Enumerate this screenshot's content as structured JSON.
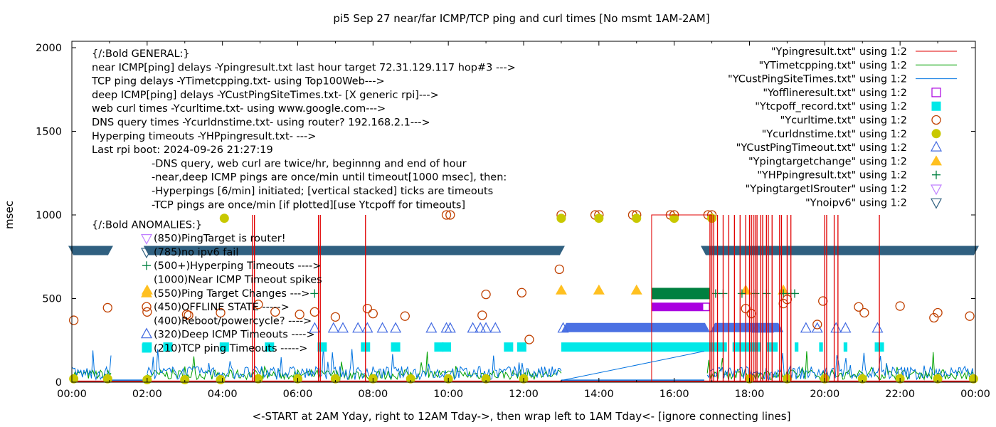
{
  "chart_data": {
    "type": "scatter",
    "title": "pi5 Sep 27  near/far ICMP/TCP ping and curl times [No msmt 1AM-2AM]",
    "xlabel": "<-START at 2AM Yday, right to 12AM Tday->, then wrap left to 1AM Tday<- [ignore connecting lines]",
    "ylabel": "msec",
    "xlim": [
      0,
      24
    ],
    "ylim": [
      0,
      2000
    ],
    "x_ticks": [
      "00:00",
      "02:00",
      "04:00",
      "06:00",
      "08:00",
      "10:00",
      "12:00",
      "14:00",
      "16:00",
      "18:00",
      "20:00",
      "22:00",
      "00:00"
    ],
    "y_ticks": [
      "0",
      "500",
      "1000",
      "1500",
      "2000"
    ],
    "y_tick_values": [
      0,
      500,
      1000,
      1500,
      2000
    ],
    "legend_position": "top-right",
    "legend": [
      {
        "label": "\"Ypingresult.txt\" using 1:2",
        "symbol": "line",
        "color": "#e00000"
      },
      {
        "label": "\"YTimetcpping.txt\" using 1:2",
        "symbol": "line",
        "color": "#00a000"
      },
      {
        "label": "\"YCustPingSiteTimes.txt\" using 1:2",
        "symbol": "line",
        "color": "#0072e0"
      },
      {
        "label": "\"Yofflineresult.txt\" using 1:2",
        "symbol": "open-square",
        "color": "#aa00e0"
      },
      {
        "label": "\"Ytcpoff_record.txt\" using 1:2",
        "symbol": "filled-square",
        "color": "#00e8e8"
      },
      {
        "label": "\"Ycurltime.txt\" using 1:2",
        "symbol": "open-circle",
        "color": "#c04000"
      },
      {
        "label": "\"Ycurldnstime.txt\" using 1:2",
        "symbol": "filled-circle",
        "color": "#c8c800"
      },
      {
        "label": "\"YCustPingTimeout.txt\" using 1:2",
        "symbol": "open-triangle-up",
        "color": "#4169e1"
      },
      {
        "label": "\"Ypingtargetchange\" using 1:2",
        "symbol": "filled-triangle-up",
        "color": "#ffc020"
      },
      {
        "label": "\"YHPpingresult.txt\" using 1:2",
        "symbol": "plus",
        "color": "#008040"
      },
      {
        "label": "\"YpingtargetISrouter\" using 1:2",
        "symbol": "open-triangle-down",
        "color": "#c080ff"
      },
      {
        "label": "\"Ynoipv6\" using 1:2",
        "symbol": "filled-triangle-down",
        "color": "#306080"
      }
    ],
    "annotations": {
      "general_header": "{/:Bold GENERAL:}",
      "general_lines": [
        "near ICMP[ping] delays -Ypingresult.txt last hour target 72.31.129.117 hop#3 --->",
        "TCP ping delays -YTimetcpping.txt- using Top100Web--->",
        "deep ICMP[ping] delays -YCustPingSiteTimes.txt- [X generic rpi]--->",
        "web curl times -Ycurltime.txt- using www.google.com--->",
        "DNS query times -Ycurldnstime.txt- using router? 192.168.2.1--->",
        "Hyperping timeouts -YHPpingresult.txt- --->",
        "Last rpi boot: 2024-09-26 21:27:19"
      ],
      "notes": [
        "-DNS query, web curl are twice/hr, beginnng and end of hour",
        "-near,deep ICMP pings are once/min until timeout[1000 msec], then:",
        "  -Hyperpings [6/min] initiated; [vertical stacked] ticks are timeouts",
        "-TCP pings are once/min [if plotted][use Ytcpoff for timeouts]"
      ],
      "anomalies_header": "{/:Bold ANOMALIES:}",
      "anomalies": [
        {
          "text": "(850)PingTarget is router!",
          "symbol": "open-triangle-down",
          "color": "#c080ff",
          "y": 850
        },
        {
          "text": "(785)no ipv6 fail",
          "symbol": "open-triangle-down",
          "color": "#306080",
          "y": 785
        },
        {
          "text": "(500+)Hyperping Timeouts ---->",
          "symbol": "plus",
          "color": "#008040",
          "y": 500
        },
        {
          "text": "(1000)Near ICMP Timeout spikes",
          "symbol": "none",
          "color": "#e00000",
          "y": 1000
        },
        {
          "text": "(550)Ping Target Changes --->",
          "symbol": "filled-triangle-up",
          "color": "#ffc020",
          "y": 550
        },
        {
          "text": "(450)OFFLINE STATE ----->",
          "symbol": "open-circle",
          "color": "#c04000",
          "y": 450
        },
        {
          "text": "(400)Reboot/powercycle? ---->",
          "symbol": "none",
          "color": "#000000",
          "y": 400
        },
        {
          "text": "(320)Deep ICMP Timeouts ---->",
          "symbol": "open-triangle-up",
          "color": "#4169e1",
          "y": 320
        },
        {
          "text": "(210)TCP ping Timeouts ----->",
          "symbol": "filled-square",
          "color": "#00e8e8",
          "y": 210
        }
      ]
    },
    "series": [
      {
        "name": "Ynoipv6",
        "type": "band",
        "y": 785,
        "segments": [
          [
            0,
            1.0
          ],
          [
            2.0,
            13.0
          ],
          [
            16.8,
            24
          ]
        ]
      },
      {
        "name": "YCustPingTimeout",
        "type": "points",
        "y": 320,
        "x": [
          6.45,
          6.95,
          7.2,
          7.6,
          7.85,
          8.25,
          8.6,
          9.55,
          9.95,
          10.05,
          10.65,
          10.85,
          11.0,
          11.25,
          13.05,
          18.2,
          18.5,
          19.5,
          19.8,
          20.3,
          20.55,
          21.4
        ],
        "dense_segments": [
          [
            13.0,
            16.95
          ],
          [
            16.95,
            18.9
          ]
        ]
      },
      {
        "name": "Ytcpoff_record",
        "type": "points",
        "y": 210,
        "x": [
          2.0,
          2.55,
          4.05,
          5.25,
          6.65,
          7.8,
          8.6,
          9.75,
          9.95,
          11.6,
          11.95,
          21.45
        ],
        "dense_segments": [
          [
            13.0,
            17.4
          ],
          [
            17.55,
            18.3
          ],
          [
            18.45,
            18.75
          ],
          [
            19.2,
            19.3
          ],
          [
            19.85,
            19.95
          ],
          [
            20.5,
            20.6
          ]
        ]
      },
      {
        "name": "Ypingtargetchange",
        "type": "points",
        "y": 550,
        "x": [
          2.0,
          13.0,
          14.0,
          15.0,
          17.9,
          18.9
        ]
      },
      {
        "name": "YHPpingresult",
        "type": "band",
        "y": 530,
        "segments": [
          [
            15.4,
            16.95
          ]
        ],
        "extra_x": [
          6.45,
          17.1,
          17.3,
          17.8,
          18.15,
          18.45,
          18.9,
          19.1,
          19.2
        ]
      },
      {
        "name": "Yofflineresult",
        "type": "band",
        "y": 450,
        "segments": [
          [
            15.4,
            16.95
          ]
        ]
      },
      {
        "name": "Ycurltime",
        "type": "points",
        "x": [
          0.05,
          0.95,
          2.0,
          3.1,
          3.05,
          3.95,
          4.95,
          5.4,
          6.05,
          6.45,
          7.0,
          7.85,
          8.0,
          8.85,
          9.95,
          10.05,
          10.9,
          11.0,
          11.95,
          12.15,
          12.95,
          13.0,
          13.9,
          14.0,
          14.9,
          15.0,
          15.9,
          16.0,
          16.9,
          17.0,
          17.9,
          18.05,
          18.9,
          19.0,
          19.8,
          19.95,
          20.9,
          21.05,
          22.0,
          22.9,
          23.0,
          23.85
        ],
        "y": [
          370,
          445,
          420,
          400,
          405,
          415,
          465,
          420,
          405,
          420,
          390,
          440,
          410,
          395,
          1000,
          1000,
          400,
          525,
          535,
          255,
          675,
          1000,
          1000,
          1000,
          1000,
          1000,
          1000,
          1000,
          1000,
          1000,
          440,
          410,
          470,
          495,
          345,
          485,
          450,
          415,
          455,
          385,
          415,
          395
        ]
      },
      {
        "name": "Ycurldnstime",
        "type": "points",
        "x": [
          0.05,
          0.95,
          2.0,
          3.0,
          3.95,
          4.05,
          4.95,
          6.0,
          7.0,
          8.0,
          9.0,
          10.0,
          11.0,
          12.0,
          13.0,
          14.0,
          15.0,
          16.0,
          17.0,
          18.0,
          19.0,
          20.0,
          21.0,
          22.0,
          23.0,
          23.95
        ],
        "y": [
          20,
          20,
          15,
          15,
          15,
          980,
          20,
          20,
          20,
          20,
          20,
          20,
          20,
          20,
          980,
          980,
          980,
          980,
          980,
          20,
          20,
          20,
          20,
          20,
          20,
          20
        ]
      },
      {
        "name": "Ypingresult_spikes",
        "type": "spikes",
        "y": 1000,
        "x": [
          4.8,
          4.85,
          6.55,
          6.6,
          7.8,
          16.95,
          17.0,
          17.05,
          17.15,
          17.3,
          17.45,
          17.6,
          17.75,
          17.9,
          18.0,
          18.05,
          18.1,
          18.15,
          18.2,
          18.3,
          18.35,
          18.45,
          18.5,
          18.6,
          18.8,
          18.85,
          19.0,
          19.1,
          20.0,
          20.05,
          20.25,
          20.35,
          21.45
        ],
        "offline_box": [
          15.4,
          17.0
        ]
      },
      {
        "name": "YCustPingSiteTimes_ramp",
        "type": "line",
        "x": [
          13.0,
          16.8
        ],
        "y": [
          10,
          185
        ]
      }
    ]
  }
}
